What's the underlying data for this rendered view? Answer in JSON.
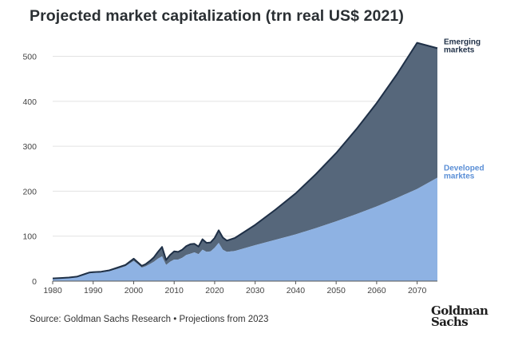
{
  "title": "Projected market capitalization (trn real US$ 2021)",
  "source": "Source: Goldman Sachs Research • Projections from 2023",
  "logo": {
    "line1": "Goldman",
    "line2": "Sachs"
  },
  "colors": {
    "emerging": "#56677b",
    "emerging_line": "#1f3047",
    "developed": "#8eb2e3",
    "developed_label": "#5b8fd6",
    "grid": "#e2e2e2",
    "axis": "#555555"
  },
  "chart_data": {
    "type": "area",
    "title": "Projected market capitalization (trn real US$ 2021)",
    "xlabel": "",
    "ylabel": "",
    "xlim": [
      1980,
      2075
    ],
    "ylim": [
      0,
      540
    ],
    "x_ticks": [
      1980,
      1990,
      2000,
      2010,
      2020,
      2030,
      2040,
      2050,
      2060,
      2070
    ],
    "y_ticks": [
      0,
      100,
      200,
      300,
      400,
      500
    ],
    "stacked": true,
    "x": [
      1980,
      1982,
      1984,
      1986,
      1988,
      1989,
      1990,
      1992,
      1994,
      1996,
      1998,
      1999,
      2000,
      2001,
      2002,
      2003,
      2004,
      2005,
      2006,
      2007,
      2008,
      2009,
      2010,
      2011,
      2012,
      2013,
      2014,
      2015,
      2016,
      2017,
      2018,
      2019,
      2020,
      2021,
      2022,
      2023,
      2025,
      2030,
      2035,
      2040,
      2045,
      2050,
      2055,
      2060,
      2065,
      2070,
      2075
    ],
    "series": [
      {
        "name": "Developed marktes",
        "label_lines": [
          "Developed",
          "marktes"
        ],
        "values": [
          5,
          6,
          7,
          9,
          14,
          17,
          18,
          19,
          22,
          27,
          33,
          39,
          45,
          38,
          30,
          33,
          38,
          43,
          50,
          55,
          36,
          43,
          48,
          48,
          52,
          58,
          61,
          64,
          60,
          70,
          65,
          66,
          74,
          85,
          70,
          65,
          67,
          80,
          92,
          104,
          118,
          133,
          149,
          166,
          185,
          205,
          230
        ]
      },
      {
        "name": "Emerging markets",
        "label_lines": [
          "Emerging",
          "markets"
        ],
        "values": [
          1,
          1,
          1,
          1,
          2,
          2,
          2,
          2,
          2,
          3,
          3,
          4,
          5,
          4,
          4,
          5,
          7,
          10,
          15,
          21,
          11,
          15,
          18,
          17,
          18,
          20,
          21,
          19,
          17,
          23,
          20,
          20,
          22,
          28,
          27,
          25,
          29,
          45,
          67,
          91,
          120,
          152,
          189,
          230,
          275,
          325,
          288
        ]
      }
    ]
  }
}
